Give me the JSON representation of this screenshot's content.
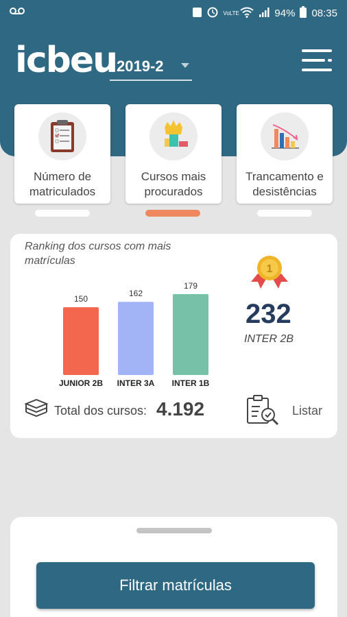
{
  "status": {
    "voicemail_icon": "voicemail-icon",
    "battery": "94%",
    "time": "08:35",
    "lte": "VoLTE"
  },
  "header": {
    "logo_text": "icbeu",
    "period": "2019-2",
    "menu_icon": "menu-icon"
  },
  "tabs": [
    {
      "label": "Número de matriculados",
      "icon": "clipboard-icon"
    },
    {
      "label": "Cursos mais procurados",
      "icon": "trophy-icon"
    },
    {
      "label": "Trancamento e desistências",
      "icon": "declining-chart-icon"
    }
  ],
  "ranking": {
    "title": "Ranking dos cursos com mais matrículas",
    "top": {
      "value": "232",
      "name": "INTER 2B"
    },
    "medal_text": "1",
    "total_label": "Total dos cursos:",
    "total_value": "4.192",
    "list_label": "Listar"
  },
  "chart_data": {
    "type": "bar",
    "categories": [
      "JUNIOR 2B",
      "INTER 3A",
      "INTER 1B"
    ],
    "values": [
      150,
      162,
      179
    ],
    "colors": [
      "#f4674f",
      "#a2b4f5",
      "#76c1a8"
    ],
    "ylim": [
      0,
      179
    ]
  },
  "bottom": {
    "filter_button": "Filtrar matrículas"
  },
  "colors": {
    "primary": "#2f6882",
    "accent": "#f0885f",
    "background": "#e5e5e5"
  }
}
